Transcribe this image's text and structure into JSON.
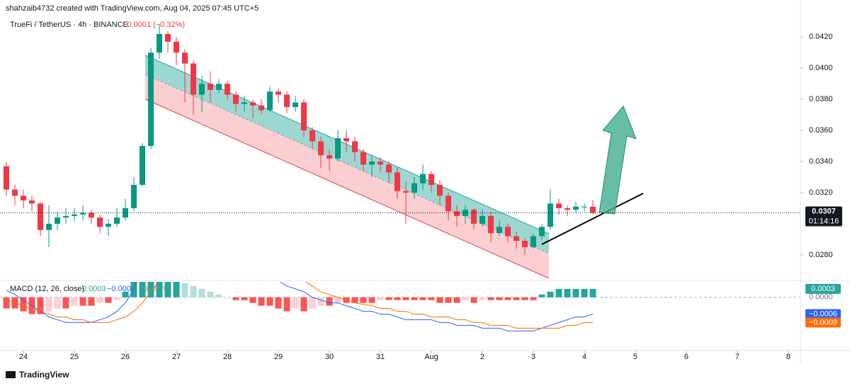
{
  "header": {
    "attribution": "shahzaib4732 created with TradingView.com, Aug 04, 2025 07:45 UTC+5",
    "symbol": "TrueFi / TetherUS · 4h · BINANCE",
    "change": "−0.0001 (−0.32%)"
  },
  "chart_data": [
    {
      "type": "candlestick",
      "x": [
        -2,
        -1,
        0,
        1,
        2,
        3,
        4,
        5,
        6,
        7,
        8,
        9,
        10,
        11,
        12,
        13,
        14,
        15,
        16,
        17,
        18,
        19,
        20,
        21,
        22,
        23,
        24,
        25,
        26,
        27,
        28,
        29,
        30,
        31,
        32,
        33,
        34,
        35,
        36,
        37,
        38,
        39,
        40,
        41,
        42,
        43,
        44,
        45,
        46,
        47,
        48,
        49,
        50,
        51,
        52,
        53,
        54,
        55,
        56,
        57,
        58,
        59,
        60,
        61,
        62,
        63,
        64,
        65,
        66,
        67
      ],
      "open": [
        0.0337,
        0.0322,
        0.0318,
        0.0315,
        0.0313,
        0.0296,
        0.03,
        0.0304,
        0.0305,
        0.0306,
        0.0307,
        0.0304,
        0.0298,
        0.03,
        0.0304,
        0.031,
        0.0325,
        0.035,
        0.041,
        0.0422,
        0.0417,
        0.041,
        0.0403,
        0.0383,
        0.039,
        0.0386,
        0.039,
        0.0383,
        0.0377,
        0.0378,
        0.0376,
        0.0373,
        0.0385,
        0.0383,
        0.0375,
        0.0378,
        0.036,
        0.0353,
        0.0344,
        0.0342,
        0.0355,
        0.0353,
        0.0346,
        0.0338,
        0.034,
        0.0338,
        0.0333,
        0.0321,
        0.032,
        0.0326,
        0.0332,
        0.0325,
        0.0318,
        0.0308,
        0.0305,
        0.0309,
        0.03,
        0.0305,
        0.0294,
        0.0298,
        0.0292,
        0.0289,
        0.0285,
        0.0292,
        0.0298,
        0.0313,
        0.031,
        0.0309,
        0.0311,
        0.0311
      ],
      "high": [
        0.034,
        0.0325,
        0.0322,
        0.0318,
        0.0314,
        0.0312,
        0.0308,
        0.031,
        0.031,
        0.0312,
        0.0309,
        0.0306,
        0.0303,
        0.031,
        0.0316,
        0.033,
        0.0352,
        0.0413,
        0.0428,
        0.0424,
        0.042,
        0.0412,
        0.0405,
        0.0395,
        0.0398,
        0.0393,
        0.0392,
        0.0385,
        0.0382,
        0.038,
        0.038,
        0.0388,
        0.0387,
        0.0385,
        0.0382,
        0.038,
        0.0362,
        0.0356,
        0.0348,
        0.036,
        0.036,
        0.0356,
        0.0348,
        0.0344,
        0.0343,
        0.034,
        0.0336,
        0.0327,
        0.033,
        0.0338,
        0.0334,
        0.0328,
        0.032,
        0.0312,
        0.0312,
        0.031,
        0.0309,
        0.0308,
        0.0302,
        0.03,
        0.0295,
        0.0291,
        0.0294,
        0.03,
        0.0322,
        0.0316,
        0.0312,
        0.0314,
        0.0313,
        0.0315
      ],
      "low": [
        0.0318,
        0.0312,
        0.031,
        0.0308,
        0.0292,
        0.0285,
        0.0296,
        0.03,
        0.0302,
        0.0302,
        0.03,
        0.0294,
        0.0292,
        0.0298,
        0.0302,
        0.0308,
        0.0324,
        0.0348,
        0.0406,
        0.041,
        0.0402,
        0.0378,
        0.037,
        0.0372,
        0.0378,
        0.0384,
        0.038,
        0.0372,
        0.0372,
        0.0368,
        0.037,
        0.0372,
        0.0378,
        0.0371,
        0.0372,
        0.0356,
        0.0348,
        0.0336,
        0.0334,
        0.034,
        0.0346,
        0.034,
        0.0334,
        0.033,
        0.0333,
        0.0326,
        0.0316,
        0.03,
        0.0316,
        0.0322,
        0.032,
        0.0312,
        0.0302,
        0.0298,
        0.03,
        0.0296,
        0.0298,
        0.0288,
        0.0292,
        0.0288,
        0.0284,
        0.028,
        0.0284,
        0.029,
        0.0296,
        0.0306,
        0.0305,
        0.0307,
        0.0308,
        0.0306
      ],
      "close": [
        0.0322,
        0.0318,
        0.0315,
        0.0313,
        0.0296,
        0.03,
        0.0304,
        0.0305,
        0.0306,
        0.0307,
        0.0304,
        0.0298,
        0.03,
        0.0304,
        0.031,
        0.0325,
        0.035,
        0.041,
        0.0422,
        0.0417,
        0.041,
        0.0403,
        0.0383,
        0.039,
        0.0386,
        0.039,
        0.0383,
        0.0377,
        0.0378,
        0.0376,
        0.0373,
        0.0385,
        0.0383,
        0.0375,
        0.0378,
        0.036,
        0.0353,
        0.0344,
        0.0342,
        0.0355,
        0.0353,
        0.0346,
        0.0338,
        0.034,
        0.0338,
        0.0333,
        0.0321,
        0.032,
        0.0326,
        0.0332,
        0.0325,
        0.0318,
        0.0308,
        0.0305,
        0.0309,
        0.03,
        0.0305,
        0.0294,
        0.0298,
        0.0292,
        0.0289,
        0.0285,
        0.0292,
        0.0298,
        0.0313,
        0.031,
        0.0309,
        0.0311,
        0.0311,
        0.0307
      ],
      "up_color": "#089981",
      "down_color": "#f23645",
      "countdown": "01:14:16",
      "xlim": [
        -2.75,
        91.42
      ],
      "xticks": [
        {
          "value": 0,
          "label": "24"
        },
        {
          "value": 6,
          "label": "25"
        },
        {
          "value": 12,
          "label": "26"
        },
        {
          "value": 18,
          "label": "27"
        },
        {
          "value": 24,
          "label": "28"
        },
        {
          "value": 30,
          "label": "29"
        },
        {
          "value": 36,
          "label": "30"
        },
        {
          "value": 42,
          "label": "31"
        },
        {
          "value": 48,
          "label": "Aug"
        },
        {
          "value": 54,
          "label": "2"
        },
        {
          "value": 60,
          "label": "3"
        },
        {
          "value": 66,
          "label": "4"
        },
        {
          "value": 72,
          "label": "5"
        },
        {
          "value": 78,
          "label": "6"
        },
        {
          "value": 84,
          "label": "7"
        },
        {
          "value": 90,
          "label": "8"
        }
      ],
      "ylim": [
        0.0264,
        0.0437
      ],
      "yticks": [
        {
          "value": 0.028,
          "label": "0.0280"
        },
        {
          "value": 0.032,
          "label": "0.0320"
        },
        {
          "value": 0.034,
          "label": "0.0340"
        },
        {
          "value": 0.036,
          "label": "0.0360"
        },
        {
          "value": 0.038,
          "label": "0.0380"
        },
        {
          "value": 0.04,
          "label": "0.0400"
        },
        {
          "value": 0.042,
          "label": "0.0420"
        }
      ]
    },
    {
      "type": "macd",
      "title": "MACD (12, 26, close)",
      "x": [
        -2,
        -1,
        0,
        1,
        2,
        3,
        4,
        5,
        6,
        7,
        8,
        9,
        10,
        11,
        12,
        13,
        14,
        15,
        16,
        17,
        18,
        19,
        20,
        21,
        22,
        23,
        24,
        25,
        26,
        27,
        28,
        29,
        30,
        31,
        32,
        33,
        34,
        35,
        36,
        37,
        38,
        39,
        40,
        41,
        42,
        43,
        44,
        45,
        46,
        47,
        48,
        49,
        50,
        51,
        52,
        53,
        54,
        55,
        56,
        57,
        58,
        59,
        60,
        61,
        62,
        63,
        64,
        65,
        66,
        67
      ],
      "xlim": [
        -2.75,
        91.42
      ],
      "ylim": [
        -0.0019,
        0.00055
      ],
      "yticks": [
        {
          "value": 0,
          "label": "0.0000"
        }
      ],
      "histogram": {
        "up_color": "#26a69a",
        "up_fade_color": "#b2dfdb",
        "down_color": "#ff5252",
        "down_fade_color": "#ffcdd2",
        "value_label": "0.0003",
        "values": [
          -0.0004,
          -0.0004,
          -0.0005,
          -0.0006,
          -0.0006,
          -0.0005,
          -0.0004,
          -0.0004,
          -0.0003,
          -0.0003,
          -0.0003,
          -0.0002,
          -0.0002,
          -0.0001,
          0.0002,
          0.0006,
          0.0006,
          0.0006,
          0.0006,
          0.0006,
          0.0006,
          0.0005,
          0.0004,
          0.0003,
          0.0002,
          0.0001,
          0,
          -0.0001,
          -0.0001,
          -0.0002,
          -0.0003,
          -0.0003,
          -0.0004,
          -0.0005,
          -0.0004,
          -0.0005,
          -0.0004,
          -0.0003,
          -0.0003,
          -0.0002,
          -0.0002,
          -0.0002,
          -0.0002,
          -0.0002,
          -0.0001,
          -0.0001,
          -0.0001,
          -0.0001,
          -0.0001,
          -0.0001,
          -0.0001,
          -0.0002,
          -0.0002,
          -0.0002,
          -0.0001,
          -0.0002,
          -0.0001,
          -0.0001,
          -0.0001,
          -0.0001,
          -0.0001,
          -0.0001,
          -0.0001,
          0.0001,
          0.0002,
          0.0003,
          0.0003,
          0.0003,
          0.0003,
          0.0003
        ]
      },
      "macd": {
        "color": "#2962ff",
        "value_label": "−0.0006",
        "values": [
          0.00025,
          0.0001,
          -0.0001,
          -0.0003,
          -0.0005,
          -0.0007,
          -0.0008,
          -0.0009,
          -0.0009,
          -0.0009,
          -0.0009,
          -0.0008,
          -0.0007,
          -0.0005,
          -0.0002,
          0.0003,
          0.001,
          0.0018,
          0.0024,
          0.0027,
          0.0028,
          0.0027,
          0.0025,
          0.0024,
          0.0022,
          0.002,
          0.0018,
          0.0016,
          0.0014,
          0.0012,
          0.001,
          0.0008,
          0.0006,
          0.0004,
          0.0003,
          0.0002,
          0,
          -0.0001,
          -0.0002,
          -0.0002,
          -0.0003,
          -0.0004,
          -0.0005,
          -0.0005,
          -0.0006,
          -0.0006,
          -0.0007,
          -0.0008,
          -0.0008,
          -0.0008,
          -0.0008,
          -0.0009,
          -0.0009,
          -0.001,
          -0.001,
          -0.001,
          -0.0011,
          -0.0011,
          -0.0011,
          -0.0012,
          -0.0012,
          -0.0012,
          -0.0012,
          -0.0011,
          -0.001,
          -0.0009,
          -0.0008,
          -0.0007,
          -0.0007,
          -0.0006
        ]
      },
      "signal": {
        "color": "#ff6d00",
        "value_label": "−0.0009",
        "values": [
          -0.0001,
          -0.0002,
          -0.0003,
          -0.0004,
          -0.0005,
          -0.0006,
          -0.0007,
          -0.0007,
          -0.0008,
          -0.0008,
          -0.0009,
          -0.0009,
          -0.0009,
          -0.0008,
          -0.0007,
          -0.0005,
          -0.0002,
          0.0002,
          0.0006,
          0.001,
          0.0014,
          0.0017,
          0.0019,
          0.002,
          0.0021,
          0.0021,
          0.0021,
          0.002,
          0.0019,
          0.0018,
          0.0017,
          0.0015,
          0.0014,
          0.0012,
          0.001,
          0.0006,
          0.0004,
          0.0002,
          0.0001,
          0,
          -0.0001,
          -0.0002,
          -0.00025,
          -0.0003,
          -0.0004,
          -0.0004,
          -0.0005,
          -0.0005,
          -0.0006,
          -0.0006,
          -0.0007,
          -0.0007,
          -0.0007,
          -0.0008,
          -0.0008,
          -0.0009,
          -0.0009,
          -0.001,
          -0.001,
          -0.001,
          -0.0011,
          -0.0011,
          -0.0011,
          -0.0011,
          -0.0011,
          -0.0011,
          -0.001,
          -0.001,
          -0.0009,
          -0.0009
        ]
      }
    }
  ],
  "footer": {
    "brand": "TradingView"
  }
}
